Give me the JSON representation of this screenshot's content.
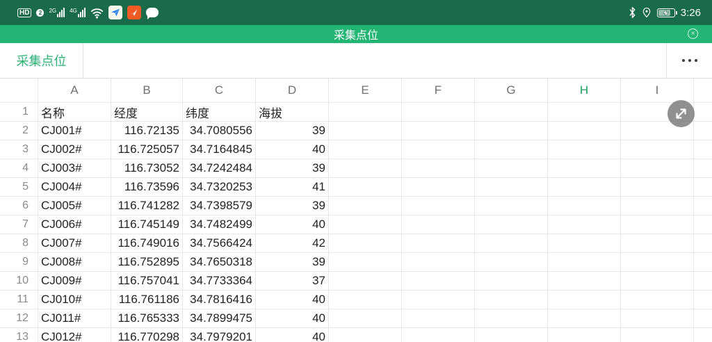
{
  "status_bar": {
    "hd_badge": "HD",
    "sim_slot": "2",
    "network_2g": "2G",
    "network_4g": "4G",
    "time": "3:26",
    "icons": [
      "volte-hd-icon",
      "sim2-icon",
      "signal-2g-icon",
      "signal-4g-icon",
      "wifi-icon",
      "blue-plane-app-icon",
      "orange-app-icon",
      "messages-icon",
      "bluetooth-icon",
      "location-icon",
      "battery-charging-icon"
    ]
  },
  "title_bar": {
    "title": "采集点位",
    "close_icon": "×"
  },
  "tab_bar": {
    "active_sheet": "采集点位"
  },
  "spreadsheet": {
    "column_headers": [
      "A",
      "B",
      "C",
      "D",
      "E",
      "F",
      "G",
      "H",
      "I"
    ],
    "selected_column": "H",
    "rows": [
      {
        "num": "1",
        "cells": [
          "名称",
          "经度",
          "纬度",
          "海拔"
        ]
      },
      {
        "num": "2",
        "cells": [
          "CJ001#",
          "116.72135",
          "34.7080556",
          "39"
        ]
      },
      {
        "num": "3",
        "cells": [
          "CJ002#",
          "116.725057",
          "34.7164845",
          "40"
        ]
      },
      {
        "num": "4",
        "cells": [
          "CJ003#",
          "116.73052",
          "34.7242484",
          "39"
        ]
      },
      {
        "num": "5",
        "cells": [
          "CJ004#",
          "116.73596",
          "34.7320253",
          "41"
        ]
      },
      {
        "num": "6",
        "cells": [
          "CJ005#",
          "116.741282",
          "34.7398579",
          "39"
        ]
      },
      {
        "num": "7",
        "cells": [
          "CJ006#",
          "116.745149",
          "34.7482499",
          "40"
        ]
      },
      {
        "num": "8",
        "cells": [
          "CJ007#",
          "116.749016",
          "34.7566424",
          "42"
        ]
      },
      {
        "num": "9",
        "cells": [
          "CJ008#",
          "116.752895",
          "34.7650318",
          "39"
        ]
      },
      {
        "num": "10",
        "cells": [
          "CJ009#",
          "116.757041",
          "34.7733364",
          "37"
        ]
      },
      {
        "num": "11",
        "cells": [
          "CJ010#",
          "116.761186",
          "34.7816416",
          "40"
        ]
      },
      {
        "num": "12",
        "cells": [
          "CJ011#",
          "116.765333",
          "34.7899475",
          "40"
        ]
      },
      {
        "num": "13",
        "cells": [
          "CJ012#",
          "116.770298",
          "34.7979201",
          "40"
        ]
      }
    ]
  },
  "colors": {
    "status_bar_green": "#1a6b4b",
    "title_bar_green": "#23b573",
    "accent_green": "#2bb377",
    "selected_column_green": "#18a065"
  }
}
